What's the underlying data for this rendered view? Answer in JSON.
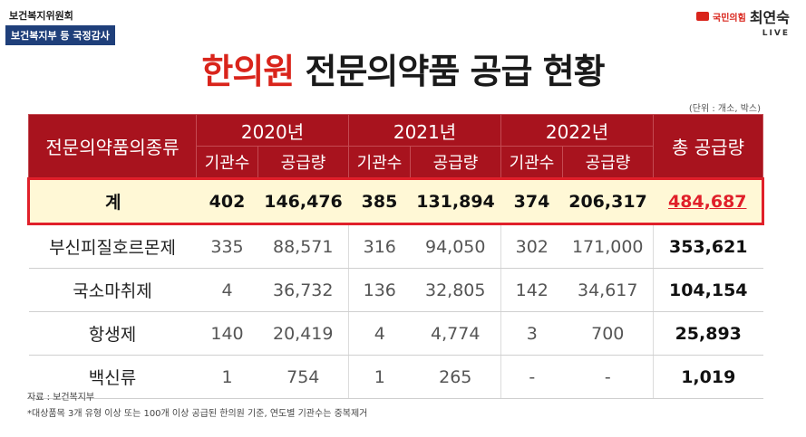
{
  "broadcast": {
    "channel": "보건복지위원회",
    "session": "보건복지부 등 국정감사"
  },
  "speaker": {
    "party": "국민의힘",
    "name": "최연숙",
    "live": "LIVE",
    "party_color": "#d9241b"
  },
  "title": {
    "highlight": "한의원",
    "rest": " 전문의약품 공급 현황"
  },
  "unit_note": "(단위 : 개소, 박스)",
  "table": {
    "category_header": "전문의약품의종류",
    "years": [
      "2020년",
      "2021년",
      "2022년"
    ],
    "subheaders": [
      "기관수",
      "공급량"
    ],
    "total_header": "총 공급량",
    "rows": [
      {
        "category": "계",
        "cells": [
          "402",
          "146,476",
          "385",
          "131,894",
          "374",
          "206,317"
        ],
        "total": "484,687"
      },
      {
        "category": "부신피질호르몬제",
        "cells": [
          "335",
          "88,571",
          "316",
          "94,050",
          "302",
          "171,000"
        ],
        "total": "353,621"
      },
      {
        "category": "국소마취제",
        "cells": [
          "4",
          "36,732",
          "136",
          "32,805",
          "142",
          "34,617"
        ],
        "total": "104,154"
      },
      {
        "category": "항생제",
        "cells": [
          "140",
          "20,419",
          "4",
          "4,774",
          "3",
          "700"
        ],
        "total": "25,893"
      },
      {
        "category": "백신류",
        "cells": [
          "1",
          "754",
          "1",
          "265",
          "-",
          "-"
        ],
        "total": "1,019"
      }
    ]
  },
  "footnotes": {
    "source": "자료 : 보건복지부",
    "note": "*대상품목 3개 유형 이상 또는 100개 이상 공급된 한의원 기준, 연도별 기관수는 중복제거"
  },
  "colors": {
    "header_bg": "#a8131e",
    "highlight_red": "#e0202a",
    "sum_row_bg": "#fff8d6"
  }
}
